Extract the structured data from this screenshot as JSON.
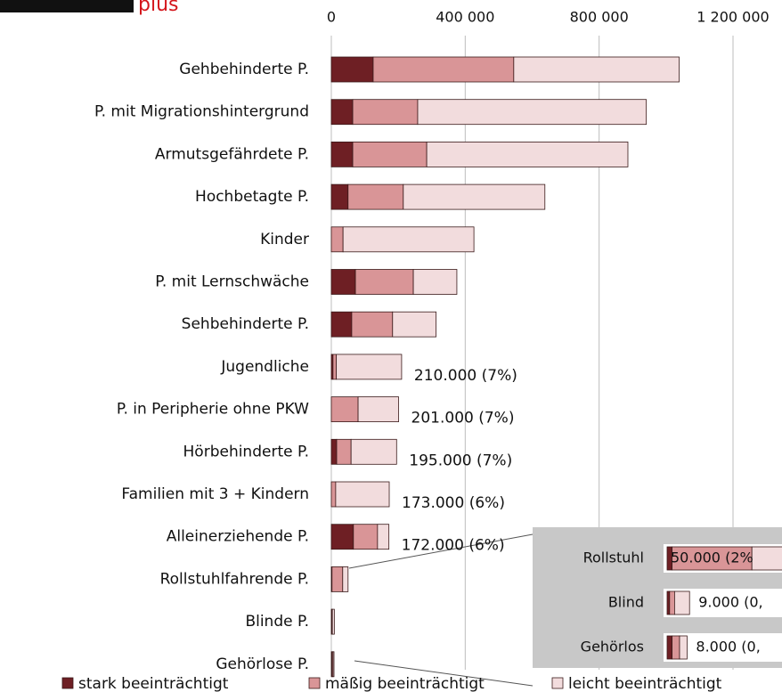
{
  "logo": "plus",
  "chart_data": {
    "type": "bar",
    "orientation": "horizontal",
    "stacked": true,
    "categories": [
      "Gehbehinderte P.",
      "P. mit Migrationshintergrund",
      "Armutsgefährdete P.",
      "Hochbetagte P.",
      "Kinder",
      "P. mit Lernschwäche",
      "Sehbehinderte P.",
      "Jugendliche",
      "P. in Peripherie ohne PKW",
      "Hörbehinderte P.",
      "Familien mit 3 + Kindern",
      "Alleinerziehende P.",
      "Rollstuhlfahrende P.",
      "Blinde P.",
      "Gehörlose P."
    ],
    "series": [
      {
        "name": "stark beeinträchtigt",
        "color": "#6e1f24",
        "values": [
          125000,
          64000,
          64000,
          50000,
          0,
          72000,
          61000,
          5000,
          0,
          16000,
          0,
          66000,
          2000,
          1000,
          2000
        ]
      },
      {
        "name": "mäßig beeinträchtigt",
        "color": "#d99597",
        "values": [
          420000,
          194000,
          221000,
          165000,
          35000,
          173000,
          122000,
          10000,
          80000,
          43000,
          13000,
          72000,
          32000,
          2000,
          3000
        ]
      },
      {
        "name": "leicht beeinträchtigt",
        "color": "#f2dcdd",
        "values": [
          494000,
          683000,
          601000,
          423000,
          391000,
          130000,
          130000,
          195000,
          121000,
          136000,
          160000,
          34000,
          16000,
          6000,
          3000
        ]
      }
    ],
    "total_labels": [
      null,
      null,
      null,
      null,
      null,
      null,
      null,
      "210.000 (7%)",
      "201.000 (7%)",
      "195.000 (7%)",
      "173.000 (6%)",
      "172.000 (6%)",
      null,
      null,
      null
    ],
    "xlim": [
      0,
      1200000
    ],
    "xticks": [
      0,
      {
        "value": 400000,
        "label": "400 000"
      },
      {
        "value": 800000,
        "label": "800 000"
      },
      {
        "value": 1200000,
        "label": "1 200 000"
      }
    ],
    "grid": true,
    "legend": "bottom",
    "inset": {
      "categories": [
        "Rollstuhl",
        "Blind",
        "Gehörlos"
      ],
      "labels": [
        "50.000 (2%",
        "9.000 (0,",
        "8.000 (0,"
      ]
    }
  }
}
